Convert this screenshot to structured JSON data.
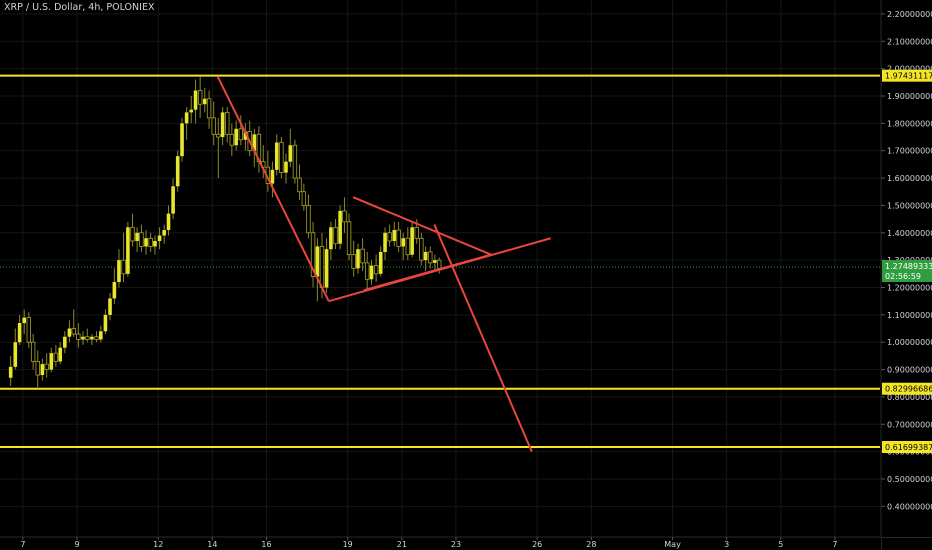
{
  "header": {
    "title": "XRP / U.S. Dollar, 4h, POLONIEX"
  },
  "chart_data": {
    "type": "candlestick",
    "title": "XRP / U.S. Dollar, 4h, POLONIEX",
    "y_axis": {
      "ticks": [
        {
          "value": 2.2,
          "label": "2.20000000"
        },
        {
          "value": 2.1,
          "label": "2.10000000"
        },
        {
          "value": 2.0,
          "label": "2.00000000"
        },
        {
          "value": 1.9,
          "label": "1.90000000"
        },
        {
          "value": 1.8,
          "label": "1.80000000"
        },
        {
          "value": 1.7,
          "label": "1.70000000"
        },
        {
          "value": 1.6,
          "label": "1.60000000"
        },
        {
          "value": 1.5,
          "label": "1.50000000"
        },
        {
          "value": 1.4,
          "label": "1.40000000"
        },
        {
          "value": 1.3,
          "label": "1.30000000"
        },
        {
          "value": 1.2,
          "label": "1.20000000"
        },
        {
          "value": 1.1,
          "label": "1.10000000"
        },
        {
          "value": 1.0,
          "label": "1.00000000"
        },
        {
          "value": 0.9,
          "label": "0.90000000"
        },
        {
          "value": 0.8,
          "label": "0.80000000"
        },
        {
          "value": 0.7,
          "label": "0.70000000"
        },
        {
          "value": 0.6,
          "label": "0.60000000"
        },
        {
          "value": 0.5,
          "label": "0.50000000"
        },
        {
          "value": 0.4,
          "label": "0.40000000"
        }
      ]
    },
    "x_axis": {
      "ticks": [
        {
          "day": 7,
          "label": "7"
        },
        {
          "day": 9,
          "label": "9"
        },
        {
          "day": 12,
          "label": "12"
        },
        {
          "day": 14,
          "label": "14"
        },
        {
          "day": 16,
          "label": "16"
        },
        {
          "day": 19,
          "label": "19"
        },
        {
          "day": 21,
          "label": "21"
        },
        {
          "day": 23,
          "label": "23"
        },
        {
          "day": 26,
          "label": "26"
        },
        {
          "day": 28,
          "label": "28"
        },
        {
          "day": 31,
          "label": "May"
        },
        {
          "day": 33,
          "label": "3"
        },
        {
          "day": 35,
          "label": "5"
        },
        {
          "day": 37,
          "label": "7"
        }
      ]
    },
    "horizontal_levels": [
      {
        "value": 1.97431117,
        "label": "1.97431117",
        "color": "#f5e625"
      },
      {
        "value": 0.82996686,
        "label": "0.82996686",
        "color": "#f5e625"
      },
      {
        "value": 0.61699387,
        "label": "0.61699387",
        "color": "#f5e625"
      }
    ],
    "current_price": {
      "value": 1.27489333,
      "label": "1.27489333",
      "countdown": "02:56:59"
    },
    "trend_lines": [
      {
        "points": [
          [
            14.2,
            1.97
          ],
          [
            18.3,
            1.15
          ]
        ],
        "color": "#e8473f"
      },
      {
        "points": [
          [
            18.3,
            1.15
          ],
          [
            26.5,
            1.38
          ]
        ],
        "color": "#e8473f"
      },
      {
        "points": [
          [
            19.2,
            1.53
          ],
          [
            24.3,
            1.32
          ]
        ],
        "color": "#e8473f"
      },
      {
        "points": [
          [
            19.6,
            1.19
          ],
          [
            24.3,
            1.32
          ]
        ],
        "color": "#e8473f"
      },
      {
        "points": [
          [
            22.2,
            1.43
          ],
          [
            25.8,
            0.6
          ]
        ],
        "color": "#e8473f"
      }
    ],
    "series": [
      {
        "ohlc": [
          {
            "day": 6.55,
            "o": 0.87,
            "h": 0.95,
            "l": 0.84,
            "c": 0.91
          },
          {
            "day": 6.72,
            "o": 0.91,
            "h": 1.05,
            "l": 0.9,
            "c": 1.0
          },
          {
            "day": 6.88,
            "o": 1.0,
            "h": 1.1,
            "l": 0.99,
            "c": 1.07
          },
          {
            "day": 7.05,
            "o": 1.07,
            "h": 1.12,
            "l": 1.03,
            "c": 1.09
          },
          {
            "day": 7.22,
            "o": 1.09,
            "h": 1.11,
            "l": 0.98,
            "c": 1.0
          },
          {
            "day": 7.38,
            "o": 1.0,
            "h": 1.03,
            "l": 0.9,
            "c": 0.93
          },
          {
            "day": 7.55,
            "o": 0.93,
            "h": 0.97,
            "l": 0.83,
            "c": 0.88
          },
          {
            "day": 7.72,
            "o": 0.88,
            "h": 0.94,
            "l": 0.86,
            "c": 0.92
          },
          {
            "day": 7.88,
            "o": 0.92,
            "h": 0.96,
            "l": 0.87,
            "c": 0.9
          },
          {
            "day": 8.05,
            "o": 0.9,
            "h": 0.98,
            "l": 0.89,
            "c": 0.96
          },
          {
            "day": 8.22,
            "o": 0.96,
            "h": 0.99,
            "l": 0.91,
            "c": 0.93
          },
          {
            "day": 8.38,
            "o": 0.93,
            "h": 1.0,
            "l": 0.92,
            "c": 0.98
          },
          {
            "day": 8.55,
            "o": 0.98,
            "h": 1.04,
            "l": 0.96,
            "c": 1.02
          },
          {
            "day": 8.72,
            "o": 1.02,
            "h": 1.08,
            "l": 1.0,
            "c": 1.05
          },
          {
            "day": 8.88,
            "o": 1.05,
            "h": 1.12,
            "l": 1.02,
            "c": 1.03
          },
          {
            "day": 9.05,
            "o": 1.03,
            "h": 1.07,
            "l": 0.98,
            "c": 1.01
          },
          {
            "day": 9.22,
            "o": 1.01,
            "h": 1.04,
            "l": 0.99,
            "c": 1.02
          },
          {
            "day": 9.38,
            "o": 1.02,
            "h": 1.05,
            "l": 1.0,
            "c": 1.01
          },
          {
            "day": 9.55,
            "o": 1.01,
            "h": 1.03,
            "l": 0.99,
            "c": 1.02
          },
          {
            "day": 9.72,
            "o": 1.02,
            "h": 1.04,
            "l": 1.0,
            "c": 1.01
          },
          {
            "day": 9.88,
            "o": 1.01,
            "h": 1.06,
            "l": 1.0,
            "c": 1.04
          },
          {
            "day": 10.05,
            "o": 1.04,
            "h": 1.12,
            "l": 1.03,
            "c": 1.1
          },
          {
            "day": 10.22,
            "o": 1.1,
            "h": 1.18,
            "l": 1.08,
            "c": 1.16
          },
          {
            "day": 10.38,
            "o": 1.16,
            "h": 1.27,
            "l": 1.14,
            "c": 1.22
          },
          {
            "day": 10.55,
            "o": 1.22,
            "h": 1.34,
            "l": 1.2,
            "c": 1.3
          },
          {
            "day": 10.72,
            "o": 1.3,
            "h": 1.4,
            "l": 1.22,
            "c": 1.25
          },
          {
            "day": 10.88,
            "o": 1.25,
            "h": 1.44,
            "l": 1.24,
            "c": 1.42
          },
          {
            "day": 11.05,
            "o": 1.42,
            "h": 1.47,
            "l": 1.35,
            "c": 1.37
          },
          {
            "day": 11.22,
            "o": 1.37,
            "h": 1.42,
            "l": 1.33,
            "c": 1.4
          },
          {
            "day": 11.38,
            "o": 1.4,
            "h": 1.43,
            "l": 1.33,
            "c": 1.35
          },
          {
            "day": 11.55,
            "o": 1.35,
            "h": 1.41,
            "l": 1.32,
            "c": 1.38
          },
          {
            "day": 11.72,
            "o": 1.38,
            "h": 1.4,
            "l": 1.33,
            "c": 1.35
          },
          {
            "day": 11.88,
            "o": 1.35,
            "h": 1.39,
            "l": 1.32,
            "c": 1.37
          },
          {
            "day": 12.05,
            "o": 1.37,
            "h": 1.42,
            "l": 1.34,
            "c": 1.39
          },
          {
            "day": 12.22,
            "o": 1.39,
            "h": 1.43,
            "l": 1.36,
            "c": 1.41
          },
          {
            "day": 12.38,
            "o": 1.41,
            "h": 1.5,
            "l": 1.39,
            "c": 1.47
          },
          {
            "day": 12.55,
            "o": 1.47,
            "h": 1.6,
            "l": 1.45,
            "c": 1.57
          },
          {
            "day": 12.72,
            "o": 1.57,
            "h": 1.7,
            "l": 1.55,
            "c": 1.68
          },
          {
            "day": 12.88,
            "o": 1.68,
            "h": 1.82,
            "l": 1.66,
            "c": 1.8
          },
          {
            "day": 13.05,
            "o": 1.8,
            "h": 1.86,
            "l": 1.74,
            "c": 1.84
          },
          {
            "day": 13.22,
            "o": 1.84,
            "h": 1.9,
            "l": 1.8,
            "c": 1.85
          },
          {
            "day": 13.38,
            "o": 1.85,
            "h": 1.96,
            "l": 1.8,
            "c": 1.92
          },
          {
            "day": 13.55,
            "o": 1.92,
            "h": 1.97,
            "l": 1.82,
            "c": 1.87
          },
          {
            "day": 13.72,
            "o": 1.87,
            "h": 1.93,
            "l": 1.84,
            "c": 1.89
          },
          {
            "day": 13.88,
            "o": 1.89,
            "h": 1.92,
            "l": 1.78,
            "c": 1.82
          },
          {
            "day": 14.05,
            "o": 1.82,
            "h": 1.88,
            "l": 1.72,
            "c": 1.76
          },
          {
            "day": 14.22,
            "o": 1.76,
            "h": 1.82,
            "l": 1.6,
            "c": 1.75
          },
          {
            "day": 14.38,
            "o": 1.75,
            "h": 1.86,
            "l": 1.72,
            "c": 1.84
          },
          {
            "day": 14.55,
            "o": 1.84,
            "h": 1.86,
            "l": 1.73,
            "c": 1.76
          },
          {
            "day": 14.72,
            "o": 1.76,
            "h": 1.8,
            "l": 1.68,
            "c": 1.72
          },
          {
            "day": 14.88,
            "o": 1.72,
            "h": 1.81,
            "l": 1.7,
            "c": 1.78
          },
          {
            "day": 15.05,
            "o": 1.78,
            "h": 1.83,
            "l": 1.72,
            "c": 1.74
          },
          {
            "day": 15.22,
            "o": 1.74,
            "h": 1.8,
            "l": 1.7,
            "c": 1.77
          },
          {
            "day": 15.38,
            "o": 1.77,
            "h": 1.81,
            "l": 1.68,
            "c": 1.7
          },
          {
            "day": 15.55,
            "o": 1.7,
            "h": 1.78,
            "l": 1.64,
            "c": 1.76
          },
          {
            "day": 15.72,
            "o": 1.76,
            "h": 1.79,
            "l": 1.62,
            "c": 1.66
          },
          {
            "day": 15.88,
            "o": 1.66,
            "h": 1.72,
            "l": 1.6,
            "c": 1.64
          },
          {
            "day": 16.05,
            "o": 1.64,
            "h": 1.7,
            "l": 1.55,
            "c": 1.58
          },
          {
            "day": 16.22,
            "o": 1.58,
            "h": 1.66,
            "l": 1.53,
            "c": 1.63
          },
          {
            "day": 16.38,
            "o": 1.63,
            "h": 1.76,
            "l": 1.61,
            "c": 1.73
          },
          {
            "day": 16.55,
            "o": 1.73,
            "h": 1.75,
            "l": 1.6,
            "c": 1.62
          },
          {
            "day": 16.72,
            "o": 1.62,
            "h": 1.69,
            "l": 1.58,
            "c": 1.66
          },
          {
            "day": 16.88,
            "o": 1.66,
            "h": 1.78,
            "l": 1.64,
            "c": 1.72
          },
          {
            "day": 17.05,
            "o": 1.72,
            "h": 1.74,
            "l": 1.58,
            "c": 1.6
          },
          {
            "day": 17.22,
            "o": 1.6,
            "h": 1.65,
            "l": 1.52,
            "c": 1.55
          },
          {
            "day": 17.38,
            "o": 1.55,
            "h": 1.58,
            "l": 1.48,
            "c": 1.5
          },
          {
            "day": 17.55,
            "o": 1.5,
            "h": 1.54,
            "l": 1.38,
            "c": 1.4
          },
          {
            "day": 17.72,
            "o": 1.4,
            "h": 1.44,
            "l": 1.2,
            "c": 1.24
          },
          {
            "day": 17.88,
            "o": 1.24,
            "h": 1.38,
            "l": 1.15,
            "c": 1.35
          },
          {
            "day": 18.05,
            "o": 1.35,
            "h": 1.4,
            "l": 1.16,
            "c": 1.2
          },
          {
            "day": 18.22,
            "o": 1.2,
            "h": 1.38,
            "l": 1.18,
            "c": 1.34
          },
          {
            "day": 18.38,
            "o": 1.34,
            "h": 1.44,
            "l": 1.3,
            "c": 1.42
          },
          {
            "day": 18.55,
            "o": 1.42,
            "h": 1.45,
            "l": 1.34,
            "c": 1.36
          },
          {
            "day": 18.72,
            "o": 1.36,
            "h": 1.5,
            "l": 1.34,
            "c": 1.48
          },
          {
            "day": 18.88,
            "o": 1.48,
            "h": 1.53,
            "l": 1.4,
            "c": 1.44
          },
          {
            "day": 19.05,
            "o": 1.44,
            "h": 1.47,
            "l": 1.3,
            "c": 1.32
          },
          {
            "day": 19.22,
            "o": 1.32,
            "h": 1.37,
            "l": 1.24,
            "c": 1.27
          },
          {
            "day": 19.38,
            "o": 1.27,
            "h": 1.36,
            "l": 1.25,
            "c": 1.34
          },
          {
            "day": 19.55,
            "o": 1.34,
            "h": 1.38,
            "l": 1.26,
            "c": 1.29
          },
          {
            "day": 19.72,
            "o": 1.29,
            "h": 1.33,
            "l": 1.19,
            "c": 1.23
          },
          {
            "day": 19.88,
            "o": 1.23,
            "h": 1.3,
            "l": 1.21,
            "c": 1.28
          },
          {
            "day": 20.05,
            "o": 1.28,
            "h": 1.32,
            "l": 1.22,
            "c": 1.25
          },
          {
            "day": 20.22,
            "o": 1.25,
            "h": 1.35,
            "l": 1.24,
            "c": 1.33
          },
          {
            "day": 20.38,
            "o": 1.33,
            "h": 1.42,
            "l": 1.3,
            "c": 1.4
          },
          {
            "day": 20.55,
            "o": 1.4,
            "h": 1.43,
            "l": 1.35,
            "c": 1.37
          },
          {
            "day": 20.72,
            "o": 1.37,
            "h": 1.44,
            "l": 1.35,
            "c": 1.41
          },
          {
            "day": 20.88,
            "o": 1.41,
            "h": 1.44,
            "l": 1.33,
            "c": 1.35
          },
          {
            "day": 21.05,
            "o": 1.35,
            "h": 1.4,
            "l": 1.3,
            "c": 1.38
          },
          {
            "day": 21.22,
            "o": 1.38,
            "h": 1.42,
            "l": 1.3,
            "c": 1.32
          },
          {
            "day": 21.38,
            "o": 1.32,
            "h": 1.44,
            "l": 1.31,
            "c": 1.42
          },
          {
            "day": 21.55,
            "o": 1.42,
            "h": 1.45,
            "l": 1.36,
            "c": 1.38
          },
          {
            "day": 21.72,
            "o": 1.38,
            "h": 1.4,
            "l": 1.28,
            "c": 1.3
          },
          {
            "day": 21.88,
            "o": 1.3,
            "h": 1.35,
            "l": 1.26,
            "c": 1.33
          },
          {
            "day": 22.05,
            "o": 1.33,
            "h": 1.35,
            "l": 1.27,
            "c": 1.29
          },
          {
            "day": 22.22,
            "o": 1.29,
            "h": 1.32,
            "l": 1.26,
            "c": 1.3
          },
          {
            "day": 22.38,
            "o": 1.3,
            "h": 1.31,
            "l": 1.25,
            "c": 1.27
          }
        ]
      }
    ],
    "colors": {
      "candle": "#e8e52d",
      "wick": "#8a8a2a",
      "trend": "#e8473f",
      "level": "#f5e625",
      "current": "#2e9e3e",
      "axis_text": "#d1d4dc",
      "grid": "#161616"
    }
  }
}
